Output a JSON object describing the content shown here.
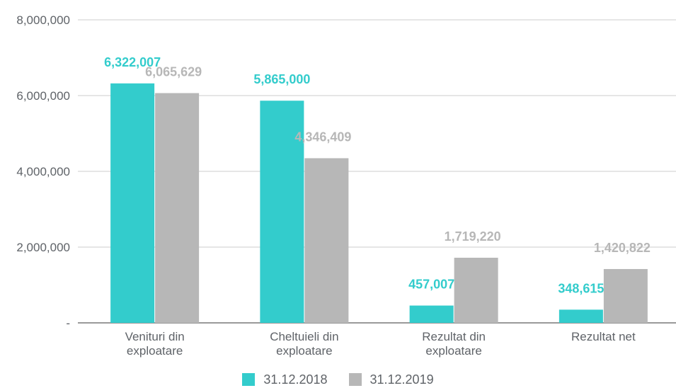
{
  "chart_data": {
    "type": "bar",
    "categories": [
      [
        "Venituri din",
        "exploatare"
      ],
      [
        "Cheltuieli din",
        "exploatare"
      ],
      [
        "Rezultat din",
        "exploatare"
      ],
      [
        "Rezultat net"
      ]
    ],
    "series": [
      {
        "name": "31.12.2018",
        "color": "#33cccc",
        "values": [
          6322007,
          5865000,
          457007,
          348615
        ],
        "labels": [
          "6,322,007",
          "5,865,000",
          "457,007",
          "348,615"
        ]
      },
      {
        "name": "31.12.2019",
        "color": "#b7b7b7",
        "values": [
          6065629,
          4346409,
          1719220,
          1420822
        ],
        "labels": [
          "6,065,629",
          "4,346,409",
          "1,719,220",
          "1,420,822"
        ]
      }
    ],
    "ylim": [
      0,
      8000000
    ],
    "yticks": [
      0,
      2000000,
      4000000,
      6000000,
      8000000
    ],
    "ytick_labels": [
      "-",
      "2,000,000",
      "4,000,000",
      "6,000,000",
      "8,000,000"
    ],
    "grid": true,
    "legend": "bottom"
  }
}
